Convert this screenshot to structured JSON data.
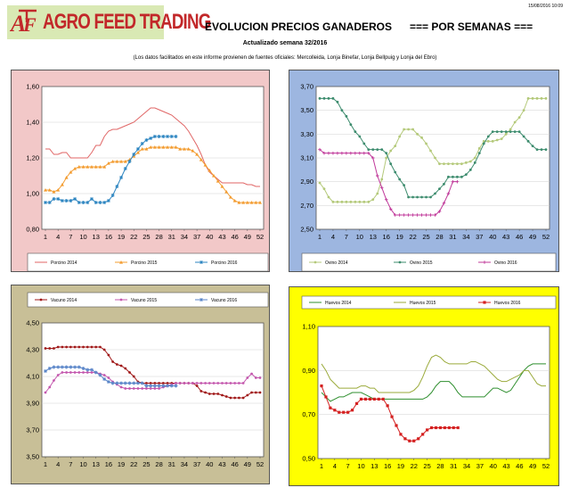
{
  "header": {
    "logo_mark": "ATF",
    "logo_text": "AGRO FEED TRADING",
    "title": "EVOLUCION PRECIOS GANADEROS      === POR SEMANAS ===",
    "subtitle": "Actualizado semana 32/2016",
    "source_note": "(Los datos facilitados en este informe provienen de fuentes oficiales: Mercolleida, Lonja Binefar, Lonja Bellpuig y Lonja del Ebro)",
    "date": "15/08/2016 10:09"
  },
  "colors": {
    "porcino_bg": "#f2c8c8",
    "ovino_bg": "#9db6e0",
    "vacuno_bg": "#c8bf97",
    "huevos_bg": "#ffff00"
  },
  "chart_data": [
    {
      "id": "porcino",
      "type": "line",
      "x_ticks": [
        1,
        4,
        7,
        10,
        13,
        16,
        19,
        22,
        25,
        28,
        31,
        34,
        37,
        40,
        43,
        46,
        49,
        52
      ],
      "y_ticks": [
        "0,80",
        "1,00",
        "1,20",
        "1,40",
        "1,60"
      ],
      "ylim": [
        0.8,
        1.6
      ],
      "series": [
        {
          "name": "Porcino 2014",
          "color": "#e06666",
          "marker": "none",
          "values": [
            1.25,
            1.25,
            1.22,
            1.22,
            1.23,
            1.23,
            1.2,
            1.2,
            1.2,
            1.2,
            1.2,
            1.23,
            1.27,
            1.27,
            1.32,
            1.35,
            1.36,
            1.36,
            1.37,
            1.38,
            1.39,
            1.4,
            1.42,
            1.44,
            1.46,
            1.48,
            1.48,
            1.47,
            1.46,
            1.45,
            1.44,
            1.42,
            1.4,
            1.38,
            1.35,
            1.31,
            1.27,
            1.22,
            1.16,
            1.12,
            1.1,
            1.08,
            1.06,
            1.06,
            1.06,
            1.06,
            1.06,
            1.06,
            1.05,
            1.05,
            1.04,
            1.04
          ]
        },
        {
          "name": "Porcino 2015",
          "color": "#f39c30",
          "marker": "tri",
          "values": [
            1.02,
            1.02,
            1.01,
            1.02,
            1.05,
            1.09,
            1.12,
            1.14,
            1.15,
            1.15,
            1.15,
            1.15,
            1.15,
            1.15,
            1.15,
            1.17,
            1.18,
            1.18,
            1.18,
            1.18,
            1.19,
            1.21,
            1.23,
            1.25,
            1.25,
            1.26,
            1.26,
            1.26,
            1.26,
            1.26,
            1.26,
            1.26,
            1.25,
            1.25,
            1.25,
            1.24,
            1.22,
            1.19,
            1.16,
            1.13,
            1.1,
            1.07,
            1.04,
            1.01,
            0.98,
            0.96,
            0.95,
            0.95,
            0.95,
            0.95,
            0.95,
            0.95
          ]
        },
        {
          "name": "Porcino 2016",
          "color": "#2e86c1",
          "marker": "star",
          "values": [
            0.95,
            0.95,
            0.97,
            0.97,
            0.96,
            0.96,
            0.96,
            0.97,
            0.95,
            0.95,
            0.95,
            0.97,
            0.95,
            0.95,
            0.95,
            0.96,
            0.99,
            1.04,
            1.09,
            1.14,
            1.18,
            1.22,
            1.25,
            1.28,
            1.3,
            1.31,
            1.32,
            1.32,
            1.32,
            1.32,
            1.32,
            1.32
          ]
        }
      ],
      "legend": "bottom"
    },
    {
      "id": "ovino",
      "type": "line",
      "x_ticks": [
        1,
        4,
        7,
        10,
        13,
        16,
        19,
        22,
        25,
        28,
        31,
        34,
        37,
        40,
        43,
        46,
        49,
        52
      ],
      "y_ticks": [
        "2,50",
        "2,70",
        "2,90",
        "3,10",
        "3,30",
        "3,50",
        "3,70"
      ],
      "ylim": [
        2.5,
        3.7
      ],
      "series": [
        {
          "name": "Ovino 2014",
          "color": "#b4c97a",
          "marker": "dot",
          "values": [
            2.89,
            2.84,
            2.77,
            2.73,
            2.73,
            2.73,
            2.73,
            2.73,
            2.73,
            2.73,
            2.73,
            2.73,
            2.75,
            2.8,
            2.92,
            3.1,
            3.16,
            3.2,
            3.28,
            3.34,
            3.34,
            3.34,
            3.3,
            3.27,
            3.22,
            3.16,
            3.1,
            3.05,
            3.05,
            3.05,
            3.05,
            3.05,
            3.05,
            3.06,
            3.07,
            3.1,
            3.18,
            3.24,
            3.24,
            3.24,
            3.25,
            3.26,
            3.3,
            3.34,
            3.4,
            3.44,
            3.5,
            3.6,
            3.6,
            3.6,
            3.6,
            3.6
          ]
        },
        {
          "name": "Ovino 2015",
          "color": "#3d8c6e",
          "marker": "dot",
          "values": [
            3.6,
            3.6,
            3.6,
            3.6,
            3.57,
            3.5,
            3.45,
            3.38,
            3.32,
            3.28,
            3.22,
            3.17,
            3.17,
            3.17,
            3.17,
            3.14,
            3.05,
            2.98,
            2.92,
            2.87,
            2.77,
            2.77,
            2.77,
            2.77,
            2.77,
            2.77,
            2.8,
            2.84,
            2.88,
            2.94,
            2.94,
            2.94,
            2.94,
            2.96,
            3.0,
            3.06,
            3.14,
            3.22,
            3.28,
            3.32,
            3.32,
            3.32,
            3.32,
            3.32,
            3.32,
            3.32,
            3.28,
            3.24,
            3.2,
            3.17,
            3.17,
            3.17
          ]
        },
        {
          "name": "Ovino 2016",
          "color": "#c0399a",
          "marker": "plus",
          "values": [
            3.17,
            3.14,
            3.14,
            3.14,
            3.14,
            3.14,
            3.14,
            3.14,
            3.14,
            3.14,
            3.14,
            3.14,
            3.1,
            2.95,
            2.85,
            2.75,
            2.67,
            2.62,
            2.62,
            2.62,
            2.62,
            2.62,
            2.62,
            2.62,
            2.62,
            2.62,
            2.62,
            2.65,
            2.72,
            2.8,
            2.9,
            2.9
          ]
        }
      ],
      "legend": "bottom"
    },
    {
      "id": "vacuno",
      "type": "line",
      "x_ticks": [
        1,
        4,
        7,
        10,
        13,
        16,
        19,
        22,
        25,
        28,
        31,
        34,
        37,
        40,
        43,
        46,
        49,
        52
      ],
      "y_ticks": [
        "3,50",
        "3,70",
        "3,90",
        "4,10",
        "4,30",
        "4,50"
      ],
      "ylim": [
        3.5,
        4.5
      ],
      "series": [
        {
          "name": "Vacuno 2014",
          "color": "#a01818",
          "marker": "dot",
          "values": [
            4.31,
            4.31,
            4.31,
            4.32,
            4.32,
            4.32,
            4.32,
            4.32,
            4.32,
            4.32,
            4.32,
            4.32,
            4.32,
            4.32,
            4.3,
            4.26,
            4.21,
            4.19,
            4.18,
            4.16,
            4.13,
            4.1,
            4.06,
            4.05,
            4.05,
            4.05,
            4.05,
            4.05,
            4.05,
            4.05,
            4.05,
            4.05,
            4.05,
            4.05,
            4.05,
            4.05,
            4.03,
            3.99,
            3.98,
            3.97,
            3.97,
            3.97,
            3.96,
            3.95,
            3.94,
            3.94,
            3.94,
            3.94,
            3.96,
            3.98,
            3.98,
            3.98
          ]
        },
        {
          "name": "Vacuno 2015",
          "color": "#c458ae",
          "marker": "dot",
          "values": [
            3.98,
            4.02,
            4.07,
            4.11,
            4.13,
            4.13,
            4.13,
            4.13,
            4.13,
            4.13,
            4.13,
            4.13,
            4.13,
            4.12,
            4.11,
            4.09,
            4.06,
            4.04,
            4.02,
            4.01,
            4.01,
            4.01,
            4.01,
            4.01,
            4.01,
            4.01,
            4.01,
            4.01,
            4.02,
            4.03,
            4.04,
            4.05,
            4.05,
            4.05,
            4.05,
            4.05,
            4.05,
            4.05,
            4.05,
            4.05,
            4.05,
            4.05,
            4.05,
            4.05,
            4.05,
            4.05,
            4.05,
            4.05,
            4.09,
            4.12,
            4.09,
            4.09
          ]
        },
        {
          "name": "Vacuno 2016",
          "color": "#5b86c9",
          "marker": "star",
          "values": [
            4.14,
            4.16,
            4.17,
            4.17,
            4.17,
            4.17,
            4.17,
            4.17,
            4.17,
            4.16,
            4.15,
            4.15,
            4.13,
            4.11,
            4.08,
            4.06,
            4.05,
            4.05,
            4.05,
            4.05,
            4.05,
            4.05,
            4.05,
            4.05,
            4.03,
            4.03,
            4.03,
            4.03,
            4.03,
            4.03,
            4.03,
            4.03
          ]
        }
      ],
      "legend": "top"
    },
    {
      "id": "huevos",
      "type": "line",
      "x_ticks": [
        1,
        4,
        7,
        10,
        13,
        16,
        19,
        22,
        25,
        28,
        31,
        34,
        37,
        40,
        43,
        46,
        49,
        52
      ],
      "y_ticks": [
        "0,50",
        "0,70",
        "0,90",
        "1,10"
      ],
      "ylim": [
        0.5,
        1.1
      ],
      "series": [
        {
          "name": "Huevos 2014",
          "color": "#2f8f2f",
          "marker": "none",
          "values": [
            0.8,
            0.78,
            0.76,
            0.77,
            0.78,
            0.78,
            0.79,
            0.8,
            0.8,
            0.8,
            0.79,
            0.78,
            0.77,
            0.77,
            0.77,
            0.77,
            0.77,
            0.77,
            0.77,
            0.77,
            0.77,
            0.77,
            0.77,
            0.77,
            0.78,
            0.8,
            0.83,
            0.85,
            0.85,
            0.85,
            0.83,
            0.8,
            0.78,
            0.78,
            0.78,
            0.78,
            0.78,
            0.78,
            0.8,
            0.82,
            0.82,
            0.81,
            0.8,
            0.81,
            0.84,
            0.87,
            0.9,
            0.92,
            0.93,
            0.93,
            0.93,
            0.93
          ]
        },
        {
          "name": "Huevos 2015",
          "color": "#9aaa3a",
          "marker": "none",
          "values": [
            0.93,
            0.9,
            0.86,
            0.84,
            0.82,
            0.82,
            0.82,
            0.82,
            0.82,
            0.83,
            0.83,
            0.82,
            0.82,
            0.8,
            0.8,
            0.8,
            0.8,
            0.8,
            0.8,
            0.8,
            0.8,
            0.81,
            0.83,
            0.87,
            0.92,
            0.96,
            0.97,
            0.96,
            0.94,
            0.93,
            0.93,
            0.93,
            0.93,
            0.93,
            0.94,
            0.94,
            0.93,
            0.92,
            0.9,
            0.88,
            0.86,
            0.85,
            0.85,
            0.86,
            0.87,
            0.88,
            0.9,
            0.9,
            0.87,
            0.84,
            0.83,
            0.83
          ]
        },
        {
          "name": "Huevos 2016",
          "color": "#d42020",
          "marker": "square",
          "values": [
            0.83,
            0.78,
            0.73,
            0.72,
            0.71,
            0.71,
            0.71,
            0.72,
            0.75,
            0.77,
            0.77,
            0.77,
            0.77,
            0.77,
            0.77,
            0.74,
            0.69,
            0.65,
            0.61,
            0.59,
            0.58,
            0.58,
            0.59,
            0.61,
            0.63,
            0.64,
            0.64,
            0.64,
            0.64,
            0.64,
            0.64,
            0.64
          ]
        }
      ],
      "legend": "top"
    }
  ]
}
